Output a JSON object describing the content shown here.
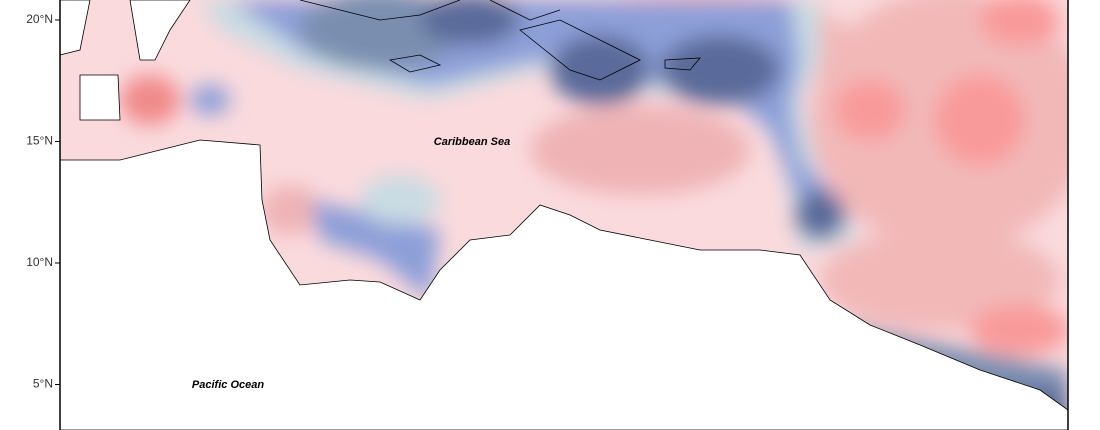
{
  "map": {
    "lat_ticks": [
      {
        "value": 20,
        "label": "20°N"
      },
      {
        "value": 15,
        "label": "15°N"
      },
      {
        "value": 10,
        "label": "10°N"
      },
      {
        "value": 5,
        "label": "5°N"
      }
    ],
    "labels": {
      "caribbean": "Caribbean Sea",
      "pacific": "Pacific Ocean"
    }
  }
}
